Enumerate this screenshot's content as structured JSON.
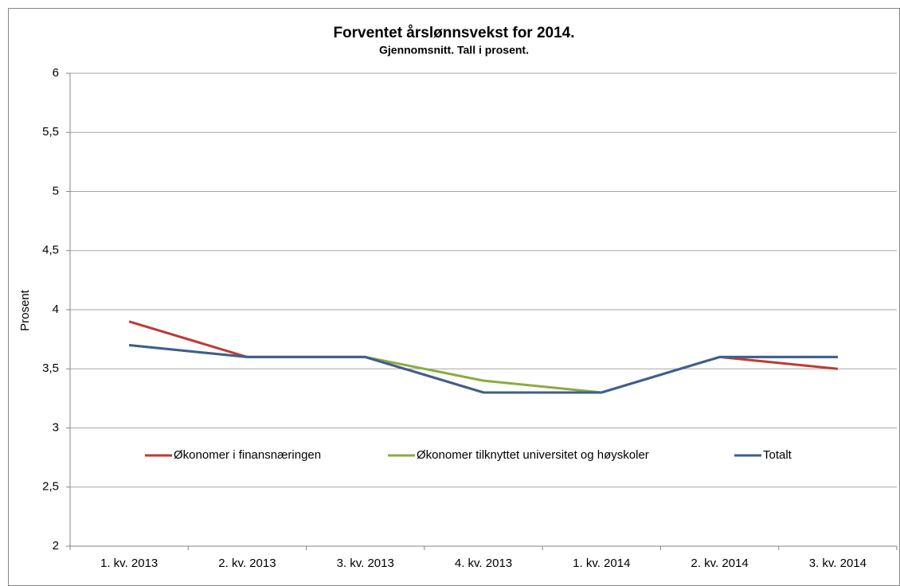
{
  "chart_data": {
    "type": "line",
    "title": "Forventet årslønnsvekst for 2014.",
    "subtitle": "Gjennomsnitt. Tall i prosent.",
    "y_label": "Prosent",
    "categories": [
      "1. kv. 2013",
      "2. kv. 2013",
      "3. kv. 2013",
      "4. kv. 2013",
      "1. kv. 2014",
      "2. kv. 2014",
      "3. kv. 2014"
    ],
    "series": [
      {
        "name": "Økonomer i finansnæringen",
        "color": "#be3a34",
        "values": [
          3.9,
          3.6,
          3.6,
          3.3,
          3.3,
          3.6,
          3.5
        ]
      },
      {
        "name": "Økonomer tilknyttet universitet og høyskoler",
        "color": "#8aab3e",
        "values": [
          3.7,
          3.6,
          3.6,
          3.4,
          3.3,
          3.6,
          3.6
        ]
      },
      {
        "name": "Totalt",
        "color": "#3d5f8f",
        "values": [
          3.7,
          3.6,
          3.6,
          3.3,
          3.3,
          3.6,
          3.6
        ]
      }
    ],
    "ylim": [
      2,
      6
    ],
    "yticks": [
      2,
      {
        "value": 2.5,
        "label": "2,5"
      },
      3,
      {
        "value": 3.5,
        "label": "3,5"
      },
      4,
      {
        "value": 4.5,
        "label": "4,5"
      },
      5,
      {
        "value": 5.5,
        "label": "5,5"
      },
      6
    ],
    "grid": true,
    "legend": "center"
  }
}
